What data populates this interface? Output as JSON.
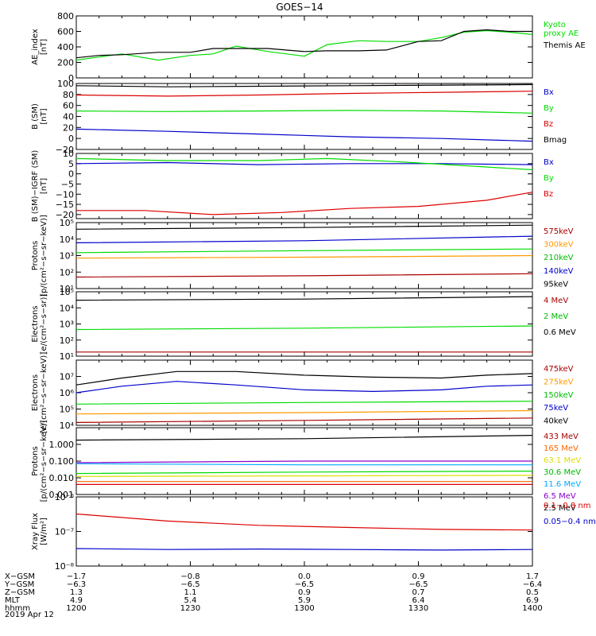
{
  "title": "GOES−14",
  "date_label": "2019 Apr 12",
  "chart_data": [
    {
      "type": "line",
      "ylabel": "AE_index\n[nT]",
      "ylim": [
        0,
        800
      ],
      "yscale": "linear",
      "yticks": [
        "0",
        "200",
        "400",
        "600",
        "800"
      ],
      "series": [
        {
          "name": "Kyoto\nproxy AE",
          "color": "#00dd00",
          "legend_color": "#00dd00",
          "x": [
            0,
            0.05,
            0.1,
            0.18,
            0.25,
            0.3,
            0.35,
            0.42,
            0.5,
            0.55,
            0.62,
            0.68,
            0.75,
            0.8,
            0.85,
            0.9,
            0.95,
            1.0
          ],
          "y": [
            230,
            270,
            310,
            230,
            290,
            310,
            410,
            340,
            280,
            430,
            480,
            470,
            470,
            520,
            590,
            610,
            590,
            560
          ]
        },
        {
          "name": "Themis AE",
          "color": "#000000",
          "legend_color": "#000000",
          "x": [
            0,
            0.05,
            0.1,
            0.18,
            0.25,
            0.3,
            0.35,
            0.42,
            0.5,
            0.55,
            0.62,
            0.68,
            0.75,
            0.8,
            0.85,
            0.9,
            0.95,
            1.0
          ],
          "y": [
            260,
            290,
            300,
            330,
            330,
            380,
            380,
            380,
            340,
            350,
            350,
            360,
            470,
            480,
            600,
            620,
            600,
            600
          ]
        }
      ]
    },
    {
      "type": "line",
      "ylabel": "B (SM)\n[nT]",
      "ylim": [
        -20,
        100
      ],
      "yscale": "linear",
      "yticks": [
        "−20",
        "0",
        "20",
        "40",
        "60",
        "80",
        "100"
      ],
      "series": [
        {
          "name": "Bx",
          "color": "#0000cc",
          "legend_color": "#0000cc",
          "x": [
            0,
            0.2,
            0.4,
            0.6,
            0.8,
            1.0
          ],
          "y": [
            17,
            13,
            8,
            3,
            0,
            -5
          ]
        },
        {
          "name": "By",
          "color": "#00dd00",
          "legend_color": "#00dd00",
          "x": [
            0,
            0.2,
            0.4,
            0.6,
            0.8,
            1.0
          ],
          "y": [
            50,
            49,
            50,
            51,
            50,
            46
          ]
        },
        {
          "name": "Bz",
          "color": "#dd0000",
          "legend_color": "#dd0000",
          "x": [
            0,
            0.2,
            0.4,
            0.6,
            0.8,
            1.0
          ],
          "y": [
            79,
            77,
            79,
            82,
            84,
            86
          ]
        },
        {
          "name": "Bmag",
          "color": "#000000",
          "legend_color": "#000000",
          "x": [
            0,
            0.2,
            0.4,
            0.6,
            0.8,
            1.0
          ],
          "y": [
            96,
            94,
            95,
            96,
            97,
            98
          ]
        }
      ]
    },
    {
      "type": "line",
      "ylabel": "B (SM)−IGRF (SM)\n[nT]",
      "ylim": [
        -22,
        10
      ],
      "yscale": "linear",
      "yticks": [
        "−20",
        "−15",
        "−10",
        "−5",
        "0",
        "5",
        "10"
      ],
      "series": [
        {
          "name": "Bx",
          "color": "#0000cc",
          "legend_color": "#0000cc",
          "x": [
            0,
            0.2,
            0.4,
            0.6,
            0.8,
            1.0
          ],
          "y": [
            5,
            5.5,
            4.5,
            5,
            5,
            4.5
          ]
        },
        {
          "name": "By",
          "color": "#00dd00",
          "legend_color": "#00dd00",
          "x": [
            0,
            0.2,
            0.4,
            0.55,
            0.7,
            0.85,
            1.0
          ],
          "y": [
            7.5,
            6.5,
            6.5,
            7.5,
            6,
            4,
            2
          ]
        },
        {
          "name": "Bz",
          "color": "#dd0000",
          "legend_color": "#dd0000",
          "x": [
            0,
            0.15,
            0.3,
            0.45,
            0.6,
            0.75,
            0.9,
            1.0
          ],
          "y": [
            -18,
            -18,
            -20,
            -19,
            -17,
            -16,
            -13,
            -9
          ]
        }
      ]
    },
    {
      "type": "line",
      "ylabel": "Protons\n[p/(cm²−s−sr−keV)]",
      "ylim": [
        10,
        100000
      ],
      "yscale": "log",
      "yticks": [
        "10¹",
        "10²",
        "10³",
        "10⁴",
        "10⁵"
      ],
      "series": [
        {
          "name": "575keV",
          "color": "#000000",
          "legend_color": "#aa0000",
          "x": [
            0,
            0.5,
            1.0
          ],
          "y": [
            40000,
            50000,
            70000
          ]
        },
        {
          "name": "300keV",
          "color": "#0000cc",
          "legend_color": "#ff9900",
          "x": [
            0,
            0.5,
            1.0
          ],
          "y": [
            6000,
            8000,
            15000
          ]
        },
        {
          "name": "210keV",
          "color": "#00dd00",
          "legend_color": "#00bb00",
          "x": [
            0,
            0.5,
            1.0
          ],
          "y": [
            1500,
            2000,
            2500
          ]
        },
        {
          "name": "140keV",
          "color": "#ff9900",
          "legend_color": "#0000cc",
          "x": [
            0,
            0.5,
            1.0
          ],
          "y": [
            700,
            800,
            1000
          ]
        },
        {
          "name": "95keV",
          "color": "#aa0000",
          "legend_color": "#000000",
          "x": [
            0,
            0.5,
            1.0
          ],
          "y": [
            50,
            60,
            80
          ]
        }
      ]
    },
    {
      "type": "line",
      "ylabel": "Electrons\n[e/(cm²−s−sr)]",
      "ylim": [
        10,
        100000
      ],
      "yscale": "log",
      "yticks": [
        "10¹",
        "10²",
        "10³",
        "10⁴",
        "10⁵"
      ],
      "series": [
        {
          "name": "4 MeV",
          "color": "#aa0000",
          "legend_color": "#aa0000",
          "x": [
            0,
            0.5,
            1.0
          ],
          "y": [
            18,
            18,
            18
          ]
        },
        {
          "name": "2 MeV",
          "color": "#00dd00",
          "legend_color": "#00bb00",
          "x": [
            0,
            0.5,
            1.0
          ],
          "y": [
            450,
            550,
            750
          ]
        },
        {
          "name": "0.6 MeV",
          "color": "#000000",
          "legend_color": "#000000",
          "x": [
            0,
            0.5,
            1.0
          ],
          "y": [
            30000,
            35000,
            50000
          ]
        }
      ]
    },
    {
      "type": "line",
      "ylabel": "Electrons\n[e/(cm²−s−sr−keV)]",
      "ylim": [
        10000,
        100000000
      ],
      "yscale": "log",
      "yticks": [
        "10⁴",
        "10⁵",
        "10⁶",
        "10⁷"
      ],
      "series": [
        {
          "name": "475keV",
          "color": "#aa0000",
          "legend_color": "#aa0000",
          "x": [
            0,
            0.5,
            1.0
          ],
          "y": [
            15000,
            20000,
            28000
          ]
        },
        {
          "name": "275keV",
          "color": "#ff9900",
          "legend_color": "#ff9900",
          "x": [
            0,
            0.5,
            1.0
          ],
          "y": [
            50000,
            60000,
            80000
          ]
        },
        {
          "name": "150keV",
          "color": "#00dd00",
          "legend_color": "#00bb00",
          "x": [
            0,
            0.5,
            1.0
          ],
          "y": [
            200000,
            250000,
            300000
          ]
        },
        {
          "name": "75keV",
          "color": "#0000cc",
          "legend_color": "#0000cc",
          "x": [
            0,
            0.1,
            0.22,
            0.35,
            0.5,
            0.65,
            0.8,
            0.9,
            1.0
          ],
          "y": [
            1000000,
            2500000,
            5000000,
            3000000,
            1500000,
            1200000,
            1500000,
            2500000,
            3000000
          ]
        },
        {
          "name": "40keV",
          "color": "#000000",
          "legend_color": "#000000",
          "x": [
            0,
            0.1,
            0.22,
            0.35,
            0.5,
            0.65,
            0.8,
            0.9,
            1.0
          ],
          "y": [
            3000000,
            8000000,
            20000000,
            20000000,
            12000000,
            9000000,
            8000000,
            12000000,
            15000000
          ]
        }
      ]
    },
    {
      "type": "line",
      "ylabel": "Protons\n[p/(cm²−s−sr−keV)]",
      "ylim": [
        0.001,
        10
      ],
      "yscale": "log",
      "yticks": [
        "0.001",
        "0.010",
        "0.100",
        "1.000"
      ],
      "series": [
        {
          "name": "433 MeV",
          "color": "#000000",
          "legend_color": "#aa0000",
          "x": [
            0,
            0.5,
            1.0
          ],
          "y": [
            1.8,
            2.2,
            3.5
          ]
        },
        {
          "name": "165 MeV",
          "color": "#8800cc",
          "legend_color": "#ff6600",
          "x": [
            0,
            0.5,
            1.0
          ],
          "y": [
            0.08,
            0.1,
            0.1
          ]
        },
        {
          "name": "63.1 MeV",
          "color": "#00aaff",
          "legend_color": "#dddd00",
          "x": [
            0,
            0.5,
            1.0
          ],
          "y": [
            0.07,
            0.06,
            0.06
          ]
        },
        {
          "name": "30.6 MeV",
          "color": "#00dd00",
          "legend_color": "#00bb00",
          "x": [
            0,
            0.5,
            1.0
          ],
          "y": [
            0.018,
            0.022,
            0.025
          ]
        },
        {
          "name": "11.6 MeV",
          "color": "#dddd00",
          "legend_color": "#00aaff",
          "x": [
            0,
            0.5,
            1.0
          ],
          "y": [
            0.012,
            0.013,
            0.014
          ]
        },
        {
          "name": "6.5 MeV",
          "color": "#ff6600",
          "legend_color": "#8800cc",
          "x": [
            0,
            0.5,
            1.0
          ],
          "y": [
            0.006,
            0.006,
            0.006
          ]
        },
        {
          "name": "2.5 MeV",
          "color": "#dd0000",
          "legend_color": "#000000",
          "x": [
            0,
            0.5,
            1.0
          ],
          "y": [
            0.004,
            0.004,
            0.004
          ]
        }
      ]
    },
    {
      "type": "line",
      "ylabel": "Xray Flux\n[W/m²]",
      "ylim": [
        1e-08,
        1e-06
      ],
      "yscale": "log",
      "yticks": [
        "10⁻⁸",
        "10⁻⁷",
        "10⁻⁶"
      ],
      "series": [
        {
          "name": "0.1−0.8 nm",
          "color": "#dd0000",
          "legend_color": "#dd0000",
          "x": [
            0,
            0.2,
            0.4,
            0.6,
            0.8,
            1.0
          ],
          "y": [
            3.2e-07,
            2e-07,
            1.5e-07,
            1.3e-07,
            1.15e-07,
            1.1e-07
          ]
        },
        {
          "name": "0.05−0.4 nm",
          "color": "#0000cc",
          "legend_color": "#0000cc",
          "x": [
            0,
            0.2,
            0.4,
            0.6,
            0.8,
            1.0
          ],
          "y": [
            3.2e-08,
            3e-08,
            3.1e-08,
            3e-08,
            2.9e-08,
            3e-08
          ]
        }
      ]
    }
  ],
  "x_axis": {
    "labels": [
      "X−GSM",
      "Y−GSM",
      "Z−GSM",
      "MLT",
      "hhmm"
    ],
    "columns": [
      [
        "−1.7",
        "−6.3",
        "1.3",
        "4.9",
        "1200"
      ],
      [
        "−0.8",
        "−6.5",
        "1.1",
        "5.4",
        "1230"
      ],
      [
        "0.0",
        "−6.5",
        "0.9",
        "5.9",
        "1300"
      ],
      [
        "0.9",
        "−6.5",
        "0.7",
        "6.4",
        "1330"
      ],
      [
        "1.7",
        "−6.4",
        "0.5",
        "6.9",
        "1400"
      ]
    ]
  }
}
